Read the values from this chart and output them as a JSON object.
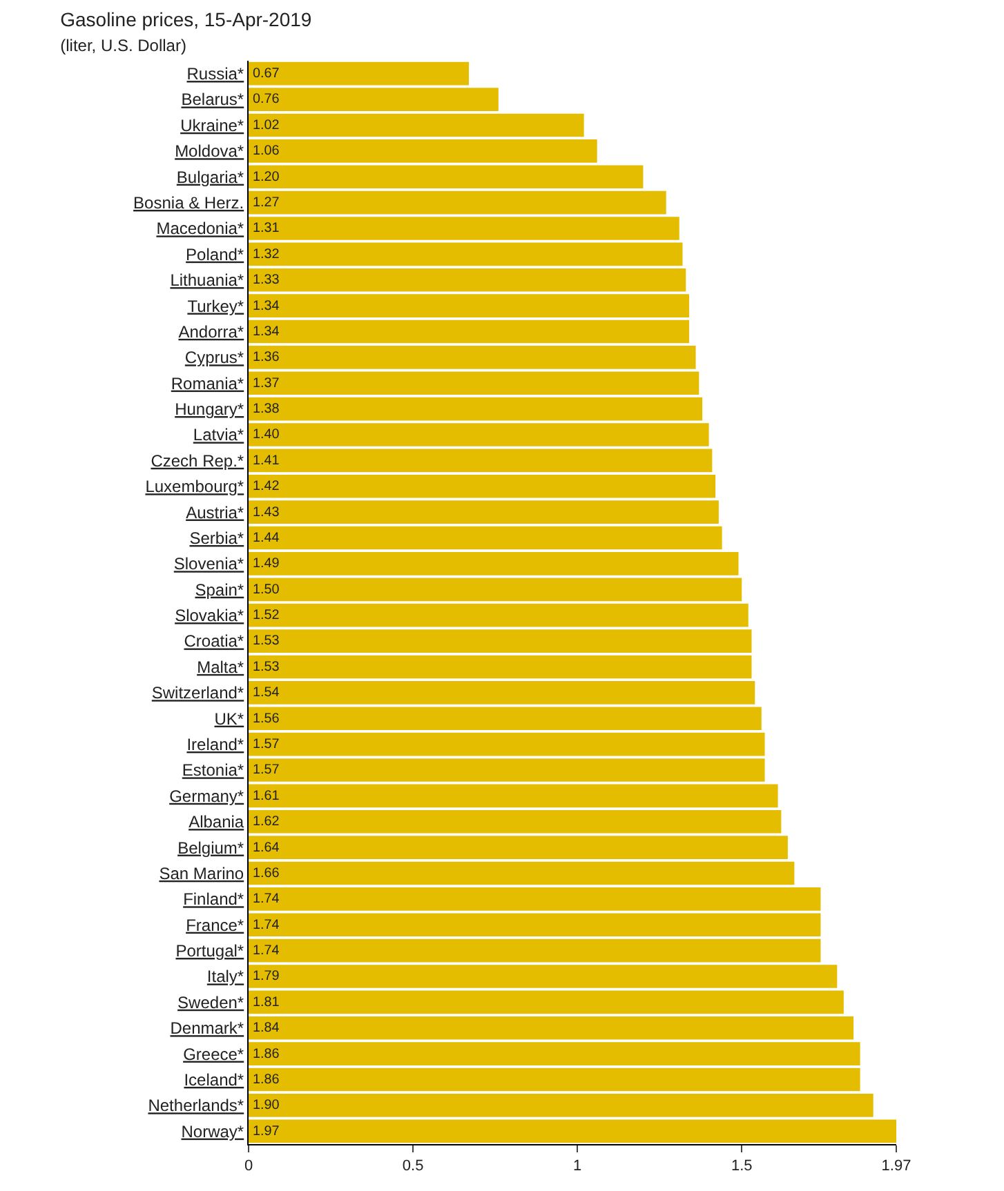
{
  "chart_data": {
    "type": "bar",
    "orientation": "horizontal",
    "title": "Gasoline prices, 15-Apr-2019",
    "subtitle": "(liter, U.S. Dollar)",
    "categories": [
      "Russia*",
      "Belarus*",
      "Ukraine*",
      "Moldova*",
      "Bulgaria*",
      "Bosnia & Herz.",
      "Macedonia*",
      "Poland*",
      "Lithuania*",
      "Turkey*",
      "Andorra*",
      "Cyprus*",
      "Romania*",
      "Hungary*",
      "Latvia*",
      "Czech Rep.*",
      "Luxembourg*",
      "Austria*",
      "Serbia*",
      "Slovenia*",
      "Spain*",
      "Slovakia*",
      "Croatia*",
      "Malta*",
      "Switzerland*",
      "UK*",
      "Ireland*",
      "Estonia*",
      "Germany*",
      "Albania",
      "Belgium*",
      "San Marino",
      "Finland*",
      "France*",
      "Portugal*",
      "Italy*",
      "Sweden*",
      "Denmark*",
      "Greece*",
      "Iceland*",
      "Netherlands*",
      "Norway*"
    ],
    "values": [
      0.67,
      0.76,
      1.02,
      1.06,
      1.2,
      1.27,
      1.31,
      1.32,
      1.33,
      1.34,
      1.34,
      1.36,
      1.37,
      1.38,
      1.4,
      1.41,
      1.42,
      1.43,
      1.44,
      1.49,
      1.5,
      1.52,
      1.53,
      1.53,
      1.54,
      1.56,
      1.57,
      1.57,
      1.61,
      1.62,
      1.64,
      1.66,
      1.74,
      1.74,
      1.74,
      1.79,
      1.81,
      1.84,
      1.86,
      1.86,
      1.9,
      1.97
    ],
    "value_labels": [
      "0.67",
      "0.76",
      "1.02",
      "1.06",
      "1.20",
      "1.27",
      "1.31",
      "1.32",
      "1.33",
      "1.34",
      "1.34",
      "1.36",
      "1.37",
      "1.38",
      "1.40",
      "1.41",
      "1.42",
      "1.43",
      "1.44",
      "1.49",
      "1.50",
      "1.52",
      "1.53",
      "1.53",
      "1.54",
      "1.56",
      "1.57",
      "1.57",
      "1.61",
      "1.62",
      "1.64",
      "1.66",
      "1.74",
      "1.74",
      "1.74",
      "1.79",
      "1.81",
      "1.84",
      "1.86",
      "1.86",
      "1.90",
      "1.97"
    ],
    "color": "#e5bd00",
    "xlim": [
      0,
      1.97
    ],
    "xticks": [
      0,
      0.5,
      1,
      1.5,
      1.97
    ]
  }
}
